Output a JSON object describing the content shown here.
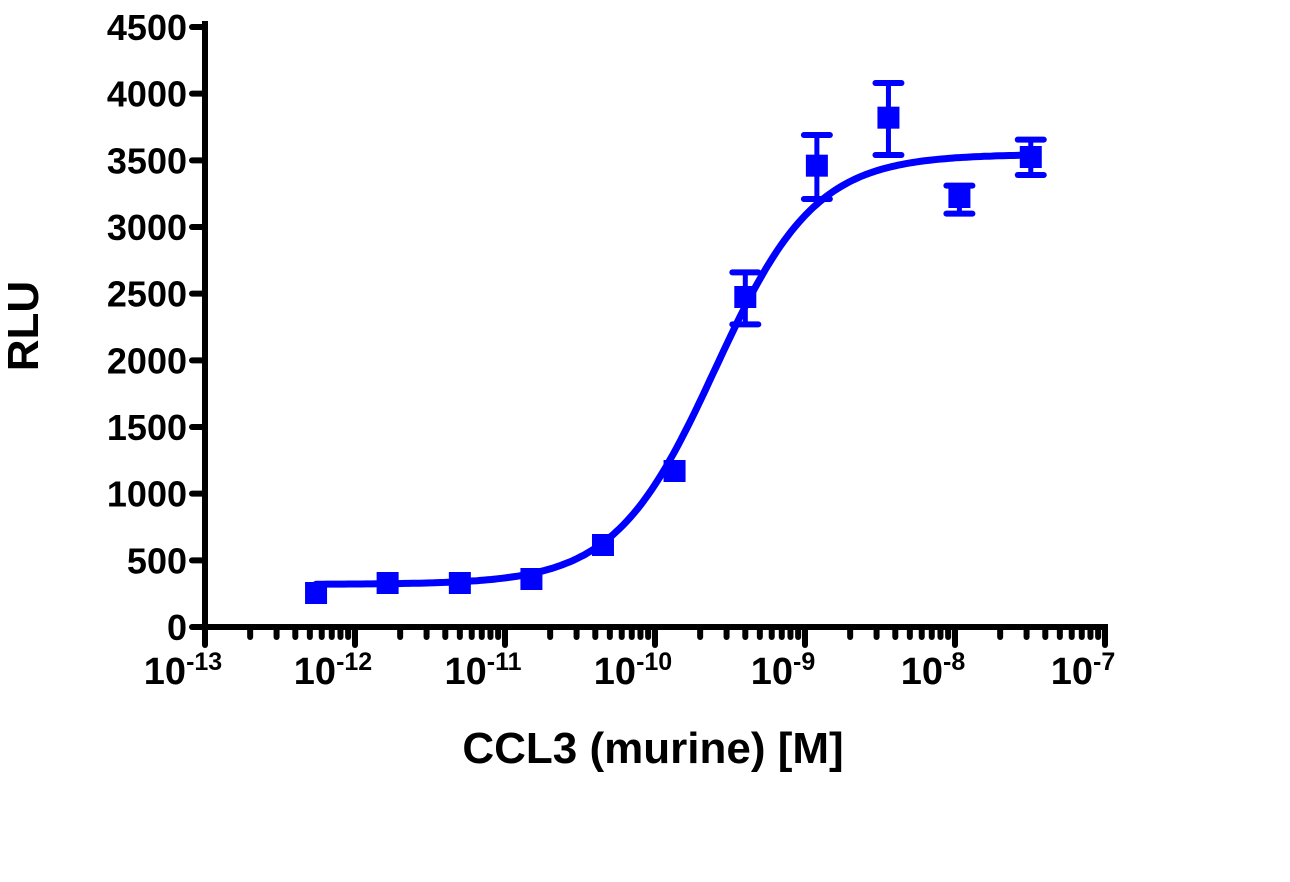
{
  "chart_data": {
    "type": "scatter",
    "title": "",
    "xlabel": "CCL3 (murine) [M]",
    "ylabel": "RLU",
    "x_scale": "log",
    "xlim": [
      1e-13,
      1e-07
    ],
    "ylim": [
      0,
      4500
    ],
    "x_tick_labels": [
      {
        "base": "10",
        "exp": "-13",
        "value": 1e-13
      },
      {
        "base": "10",
        "exp": "-12",
        "value": 1e-12
      },
      {
        "base": "10",
        "exp": "-11",
        "value": 1e-11
      },
      {
        "base": "10",
        "exp": "-10",
        "value": 1e-10
      },
      {
        "base": "10",
        "exp": "-9",
        "value": 1e-09
      },
      {
        "base": "10",
        "exp": "-8",
        "value": 1e-08
      },
      {
        "base": "10",
        "exp": "-7",
        "value": 1e-07
      }
    ],
    "y_ticks": [
      0,
      500,
      1000,
      1500,
      2000,
      2500,
      3000,
      3500,
      4000,
      4500
    ],
    "grid": false,
    "color": "#0000ff",
    "marker": "square",
    "series": [
      {
        "x": [
          5.5e-13,
          1.65e-12,
          5e-12,
          1.5e-11,
          4.5e-11,
          1.35e-10,
          4e-10,
          1.2e-09,
          3.6e-09,
          1.07e-08,
          3.2e-08
        ],
        "y": [
          255,
          330,
          330,
          360,
          615,
          1170,
          2475,
          3460,
          3820,
          3225,
          3525
        ],
        "err_low": [
          null,
          null,
          null,
          null,
          null,
          null,
          2270,
          3210,
          3540,
          3100,
          3390
        ],
        "err_high": [
          null,
          null,
          null,
          null,
          null,
          null,
          2660,
          3690,
          4080,
          3310,
          3655
        ]
      }
    ],
    "fit": {
      "model": "4PL sigmoidal",
      "bottom": 320,
      "top": 3545,
      "log_ec50": -9.6,
      "hill": 1.3
    }
  }
}
